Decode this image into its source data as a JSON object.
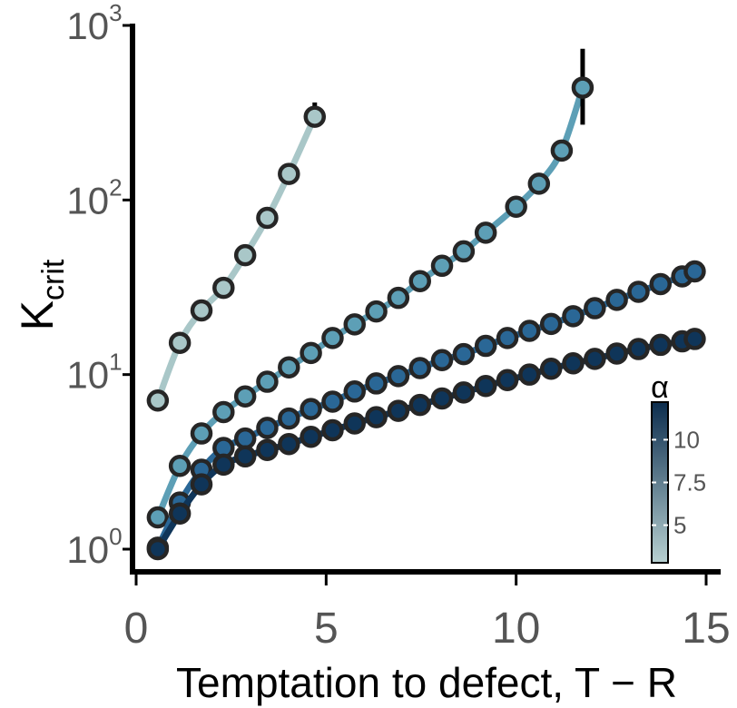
{
  "chart_data": {
    "type": "line",
    "xlabel": "Temptation to defect, T − R",
    "ylabel_main": "K",
    "ylabel_sub": "crit",
    "xlim": [
      0,
      15
    ],
    "ylim": [
      1,
      1000
    ],
    "yscale": "log",
    "x_ticks": [
      "0",
      "5",
      "10",
      "15"
    ],
    "y_ticks": [
      {
        "base": "10",
        "exp": "0"
      },
      {
        "base": "10",
        "exp": "1"
      },
      {
        "base": "10",
        "exp": "2"
      },
      {
        "base": "10",
        "exp": "3"
      }
    ],
    "colorbar": {
      "label": "α",
      "ticks": [
        "5",
        "7.5",
        "10"
      ],
      "color_low": "#b7d0d1",
      "color_high": "#0c2d4e"
    },
    "series": [
      {
        "alpha": 3,
        "color": "#a9c7c8",
        "x": [
          0.57,
          1.15,
          1.72,
          2.3,
          2.87,
          3.45,
          4.02,
          4.7
        ],
        "y": [
          7.1,
          15.2,
          23.3,
          31.4,
          48.3,
          79,
          141,
          300
        ],
        "end_error": [
          260,
          362
        ]
      },
      {
        "alpha": 5,
        "color": "#5d9fb6",
        "x": [
          0.57,
          1.15,
          1.72,
          2.3,
          2.87,
          3.45,
          4.02,
          4.6,
          5.17,
          5.75,
          6.32,
          6.9,
          7.47,
          8.05,
          8.62,
          9.2,
          9.77,
          10.35,
          10.92,
          11.5,
          11.75
        ],
        "y": [
          1.52,
          3.0,
          4.6,
          6.1,
          7.5,
          9.1,
          11.0,
          13.3,
          16.2,
          19.4,
          23.0,
          27.5,
          34.3,
          42.0,
          50.8,
          65.0,
          91.5,
          124,
          192,
          440,
          440
        ],
        "x_fix": [
          0.57,
          1.15,
          1.72,
          2.3,
          2.87,
          3.45,
          4.02,
          4.6,
          5.17,
          5.75,
          6.32,
          6.9,
          7.47,
          8.05,
          8.62,
          9.2,
          10.0,
          10.6,
          11.2,
          11.75
        ],
        "y_fix": [
          1.52,
          3.0,
          4.6,
          6.1,
          7.5,
          9.1,
          11.0,
          13.3,
          16.2,
          19.4,
          23.0,
          27.5,
          34.3,
          42.0,
          50.8,
          65.0,
          91.5,
          124,
          192,
          440
        ],
        "end_error": [
          270,
          735
        ]
      },
      {
        "alpha": 7.5,
        "color": "#2a6796",
        "x": [
          0.57,
          1.15,
          1.72,
          2.3,
          2.87,
          3.45,
          4.02,
          4.6,
          5.17,
          5.75,
          6.32,
          6.9,
          7.47,
          8.05,
          8.62,
          9.2,
          9.77,
          10.35,
          10.92,
          11.5,
          12.07,
          12.65,
          13.22,
          13.8,
          14.37,
          14.7
        ],
        "y": [
          1.02,
          1.85,
          2.85,
          3.8,
          4.3,
          4.95,
          5.6,
          6.35,
          7.0,
          8.0,
          8.9,
          9.8,
          10.9,
          12.1,
          13.1,
          14.6,
          16.2,
          17.8,
          19.5,
          21.6,
          24.0,
          26.8,
          29.8,
          33.0,
          36.5,
          39.0
        ]
      },
      {
        "alpha": 11.5,
        "color": "#0f3559",
        "x": [
          0.57,
          1.15,
          1.72,
          2.3,
          2.87,
          3.45,
          4.02,
          4.6,
          5.17,
          5.75,
          6.32,
          6.9,
          7.47,
          8.05,
          8.62,
          9.2,
          9.77,
          10.35,
          10.92,
          11.5,
          12.07,
          12.65,
          13.22,
          13.8,
          14.37,
          14.7
        ],
        "y": [
          1.0,
          1.6,
          2.35,
          3.05,
          3.4,
          3.7,
          4.0,
          4.4,
          4.8,
          5.25,
          5.7,
          6.2,
          6.7,
          7.3,
          7.9,
          8.6,
          9.3,
          10.0,
          10.8,
          11.6,
          12.3,
          13.2,
          14.0,
          14.8,
          15.5,
          16.0
        ]
      }
    ]
  }
}
